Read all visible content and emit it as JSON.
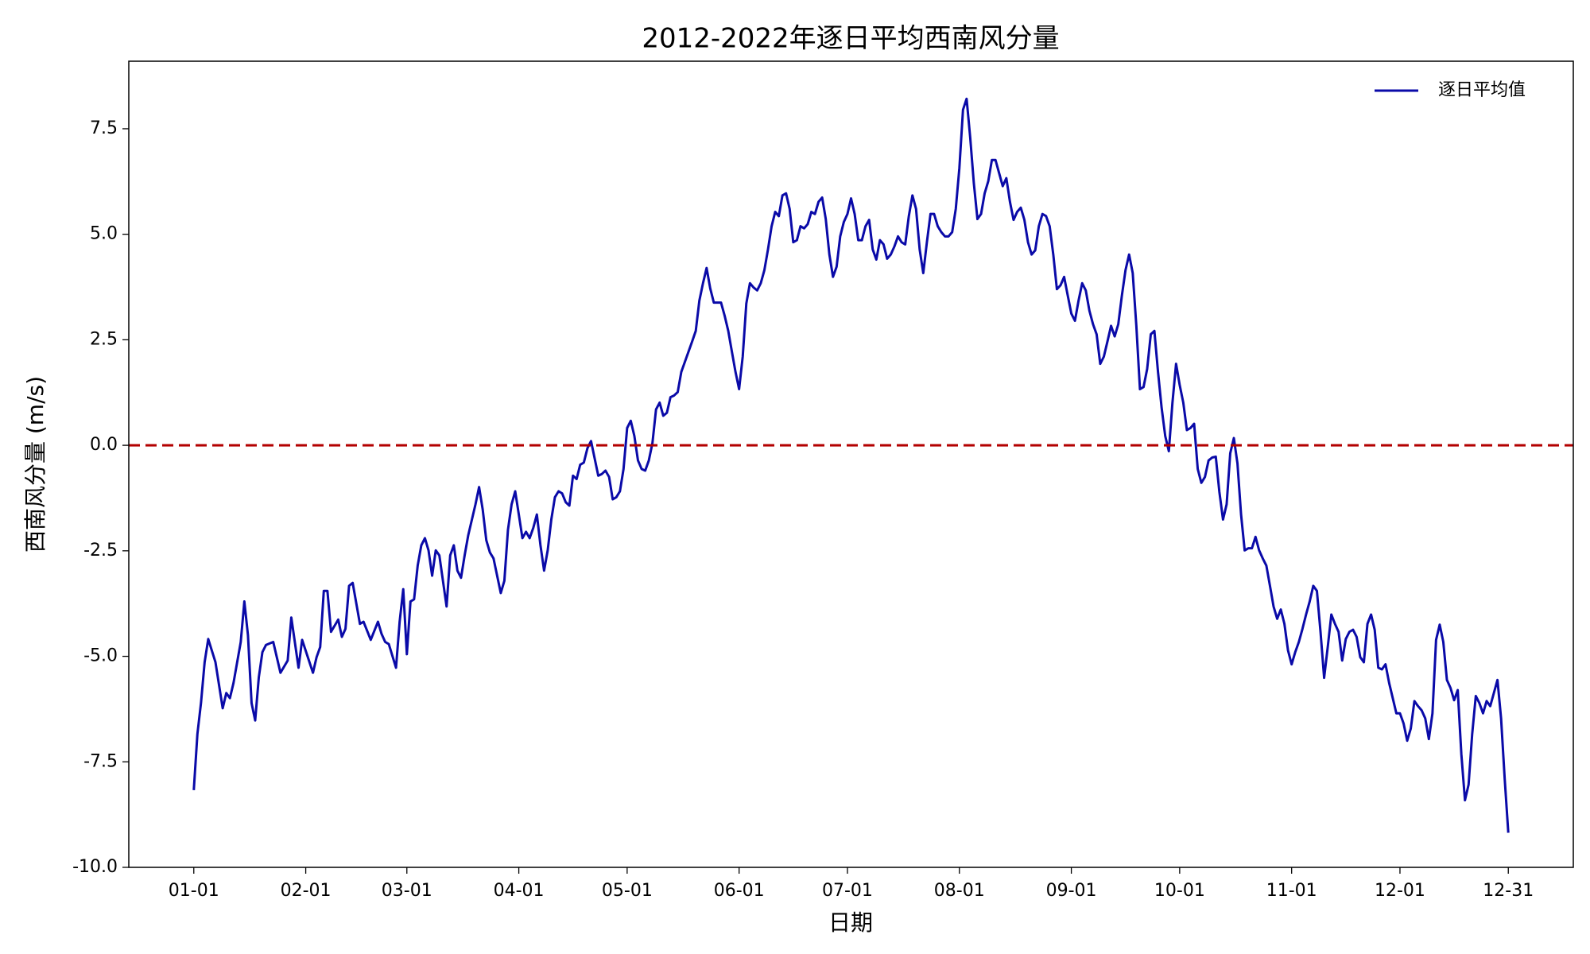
{
  "chart_data": {
    "type": "line",
    "title": "2012-2022年逐日平均西南风分量",
    "xlabel": "日期",
    "ylabel": "西南风分量 (m/s)",
    "x": [
      1,
      2,
      3,
      4,
      5,
      7,
      9,
      10,
      11,
      12,
      14,
      15,
      16,
      17,
      18,
      19,
      20,
      21,
      23,
      25,
      27,
      28,
      30,
      31,
      34,
      35,
      36,
      37,
      38,
      39,
      41,
      42,
      43,
      44,
      45,
      47,
      48,
      50,
      52,
      53,
      54,
      55,
      57,
      58,
      59,
      60,
      61,
      62,
      63,
      64,
      65,
      66,
      67,
      68,
      69,
      71,
      72,
      73,
      74,
      75,
      76,
      77,
      79,
      80,
      81,
      82,
      83,
      84,
      85,
      86,
      87,
      88,
      89,
      90,
      91,
      92,
      93,
      94,
      95,
      96,
      97,
      98,
      99,
      100,
      101,
      102,
      103,
      104,
      105,
      106,
      107,
      108,
      109,
      110,
      111,
      112,
      113,
      114,
      115,
      116,
      117,
      118,
      119,
      120,
      121,
      122,
      123,
      124,
      125,
      126,
      127,
      128,
      129,
      130,
      131,
      132,
      133,
      134,
      135,
      136,
      137,
      138,
      139,
      140,
      141,
      142,
      143,
      144,
      145,
      146,
      147,
      148,
      149,
      150,
      151,
      152,
      153,
      154,
      155,
      156,
      157,
      158,
      159,
      160,
      161,
      162,
      163,
      164,
      165,
      166,
      167,
      168,
      169,
      170,
      171,
      172,
      173,
      174,
      175,
      176,
      177,
      178,
      179,
      180,
      181,
      182,
      183,
      184,
      185,
      186,
      187,
      188,
      189,
      190,
      191,
      192,
      193,
      194,
      195,
      196,
      197,
      198,
      199,
      200,
      201,
      202,
      203,
      204,
      205,
      206,
      207,
      208,
      209,
      210,
      211,
      212,
      213,
      214,
      215,
      216,
      217,
      218,
      219,
      220,
      221,
      222,
      223,
      224,
      225,
      226,
      227,
      228,
      229,
      230,
      231,
      232,
      233,
      234,
      235,
      236,
      237,
      238,
      239,
      240,
      241,
      242,
      243,
      244,
      245,
      246,
      247,
      248,
      249,
      250,
      251,
      252,
      253,
      254,
      255,
      256,
      257,
      258,
      259,
      260,
      261,
      262,
      263,
      264,
      265,
      266,
      267,
      268,
      269,
      270,
      271,
      272,
      273,
      274,
      275,
      276,
      277,
      278,
      279,
      280,
      281,
      282,
      283,
      284,
      285,
      286,
      287,
      288,
      289,
      290,
      291,
      292,
      293,
      294,
      295,
      296,
      297,
      298,
      299,
      300,
      301,
      302,
      303,
      304,
      305,
      306,
      307,
      308,
      309,
      310,
      311,
      312,
      313,
      314,
      315,
      316,
      317,
      318,
      319,
      320,
      321,
      322,
      323,
      324,
      325,
      326,
      327,
      328,
      329,
      330,
      331,
      332,
      333,
      334,
      335,
      336,
      337,
      338,
      339,
      340,
      341,
      342,
      343,
      344,
      345,
      346,
      347,
      348,
      349,
      350,
      351,
      352,
      353,
      354,
      355,
      356,
      357,
      358,
      359,
      360,
      361,
      362,
      363,
      364,
      365
    ],
    "series": [
      {
        "name": "逐日平均值",
        "color": "#0a0aa8",
        "values": [
          -8.17,
          -6.84,
          -6.1,
          -5.14,
          -4.59,
          -5.14,
          -6.23,
          -5.87,
          -5.99,
          -5.63,
          -4.66,
          -3.7,
          -4.5,
          -6.11,
          -6.52,
          -5.5,
          -4.9,
          -4.73,
          -4.66,
          -5.39,
          -5.1,
          -4.08,
          -5.27,
          -4.61,
          -5.39,
          -5.02,
          -4.78,
          -3.45,
          -3.45,
          -4.42,
          -4.13,
          -4.54,
          -4.35,
          -3.33,
          -3.26,
          -4.23,
          -4.18,
          -4.61,
          -4.18,
          -4.47,
          -4.66,
          -4.71,
          -5.27,
          -4.18,
          -3.41,
          -4.95,
          -3.7,
          -3.65,
          -2.85,
          -2.37,
          -2.2,
          -2.49,
          -3.09,
          -2.49,
          -2.61,
          -3.82,
          -2.61,
          -2.37,
          -2.97,
          -3.14,
          -2.61,
          -2.13,
          -1.4,
          -0.99,
          -1.52,
          -2.25,
          -2.54,
          -2.68,
          -3.09,
          -3.5,
          -3.21,
          -2.0,
          -1.4,
          -1.09,
          -1.64,
          -2.2,
          -2.05,
          -2.2,
          -1.96,
          -1.64,
          -2.37,
          -2.97,
          -2.49,
          -1.76,
          -1.23,
          -1.09,
          -1.14,
          -1.35,
          -1.43,
          -0.72,
          -0.8,
          -0.46,
          -0.41,
          -0.07,
          0.1,
          -0.31,
          -0.72,
          -0.68,
          -0.6,
          -0.75,
          -1.28,
          -1.23,
          -1.09,
          -0.56,
          0.41,
          0.58,
          0.22,
          -0.36,
          -0.56,
          -0.6,
          -0.36,
          0.05,
          0.85,
          1.01,
          0.7,
          0.77,
          1.14,
          1.18,
          1.26,
          1.74,
          1.98,
          2.22,
          2.46,
          2.71,
          3.43,
          3.84,
          4.2,
          3.72,
          3.38,
          3.38,
          3.38,
          3.07,
          2.71,
          2.22,
          1.74,
          1.33,
          2.1,
          3.36,
          3.84,
          3.74,
          3.67,
          3.84,
          4.15,
          4.64,
          5.19,
          5.53,
          5.43,
          5.92,
          5.97,
          5.6,
          4.81,
          4.86,
          5.19,
          5.14,
          5.24,
          5.53,
          5.48,
          5.77,
          5.87,
          5.36,
          4.52,
          3.99,
          4.23,
          4.95,
          5.29,
          5.48,
          5.85,
          5.48,
          4.86,
          4.86,
          5.19,
          5.34,
          4.64,
          4.4,
          4.86,
          4.76,
          4.42,
          4.52,
          4.71,
          4.95,
          4.81,
          4.76,
          5.43,
          5.92,
          5.6,
          4.64,
          4.08,
          4.81,
          5.48,
          5.48,
          5.19,
          5.05,
          4.95,
          4.95,
          5.05,
          5.6,
          6.57,
          7.95,
          8.21,
          7.29,
          6.21,
          5.36,
          5.48,
          5.97,
          6.26,
          6.76,
          6.76,
          6.45,
          6.14,
          6.33,
          5.77,
          5.34,
          5.53,
          5.63,
          5.34,
          4.81,
          4.52,
          4.62,
          5.19,
          5.48,
          5.43,
          5.19,
          4.52,
          3.7,
          3.79,
          3.99,
          3.55,
          3.12,
          2.95,
          3.43,
          3.84,
          3.67,
          3.19,
          2.87,
          2.63,
          1.93,
          2.1,
          2.46,
          2.83,
          2.58,
          2.87,
          3.55,
          4.15,
          4.52,
          4.08,
          2.83,
          1.33,
          1.38,
          1.81,
          2.63,
          2.71,
          1.74,
          0.89,
          0.22,
          -0.14,
          1.01,
          1.93,
          1.43,
          1.01,
          0.36,
          0.41,
          0.51,
          -0.56,
          -0.89,
          -0.75,
          -0.36,
          -0.29,
          -0.27,
          -1.11,
          -1.76,
          -1.4,
          -0.19,
          0.17,
          -0.43,
          -1.64,
          -2.49,
          -2.44,
          -2.44,
          -2.17,
          -2.49,
          -2.68,
          -2.85,
          -3.33,
          -3.82,
          -4.11,
          -3.89,
          -4.23,
          -4.86,
          -5.19,
          -4.9,
          -4.66,
          -4.35,
          -4.01,
          -3.7,
          -3.33,
          -3.45,
          -4.42,
          -5.51,
          -4.78,
          -4.01,
          -4.23,
          -4.42,
          -5.1,
          -4.59,
          -4.42,
          -4.37,
          -4.54,
          -5.02,
          -5.14,
          -4.23,
          -4.01,
          -4.37,
          -5.27,
          -5.31,
          -5.19,
          -5.63,
          -5.99,
          -6.35,
          -6.35,
          -6.59,
          -7.0,
          -6.71,
          -6.06,
          -6.18,
          -6.28,
          -6.47,
          -6.96,
          -6.35,
          -4.61,
          -4.25,
          -4.66,
          -5.56,
          -5.75,
          -6.04,
          -5.8,
          -7.32,
          -8.41,
          -8.04,
          -6.84,
          -5.94,
          -6.11,
          -6.35,
          -6.06,
          -6.18,
          -5.87,
          -5.56,
          -6.47,
          -7.9,
          -9.18
        ]
      }
    ],
    "reference_line": {
      "value": 0,
      "color": "#b30000",
      "dashed": true
    },
    "xlim": [
      -17,
      383
    ],
    "xticks": [
      {
        "value": 1,
        "label": "01-01"
      },
      {
        "value": 32,
        "label": "02-01"
      },
      {
        "value": 60,
        "label": "03-01"
      },
      {
        "value": 91,
        "label": "04-01"
      },
      {
        "value": 121,
        "label": "05-01"
      },
      {
        "value": 152,
        "label": "06-01"
      },
      {
        "value": 182,
        "label": "07-01"
      },
      {
        "value": 213,
        "label": "08-01"
      },
      {
        "value": 244,
        "label": "09-01"
      },
      {
        "value": 274,
        "label": "10-01"
      },
      {
        "value": 305,
        "label": "11-01"
      },
      {
        "value": 335,
        "label": "12-01"
      },
      {
        "value": 365,
        "label": "12-31"
      }
    ],
    "ylim": [
      -10.0,
      9.1
    ],
    "yticks": [
      {
        "value": -10,
        "label": "-10.0"
      },
      -7.5,
      {
        "value": -5,
        "label": "-5.0"
      },
      -2.5,
      {
        "value": 0,
        "label": "0.0"
      },
      2.5,
      {
        "value": 5,
        "label": "5.0"
      },
      7.5
    ],
    "grid": false,
    "legend": "upper right"
  }
}
